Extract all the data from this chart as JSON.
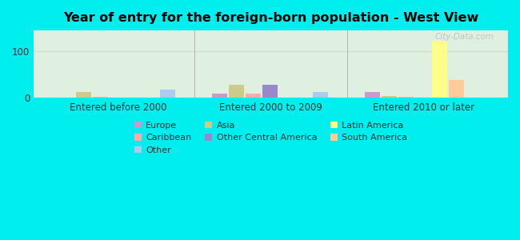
{
  "title": "Year of entry for the foreign-born population - West View",
  "background_color": "#00EEEE",
  "categories": [
    "Entered before 2000",
    "Entered 2000 to 2009",
    "Entered 2010 or later"
  ],
  "series": [
    {
      "name": "Europe",
      "color": "#cc99cc",
      "values": [
        0,
        8,
        12
      ]
    },
    {
      "name": "Asia",
      "color": "#cccc88",
      "values": [
        13,
        28,
        4
      ]
    },
    {
      "name": "Caribbean",
      "color": "#ffaaaa",
      "values": [
        1,
        8,
        2
      ]
    },
    {
      "name": "Other Central America",
      "color": "#9988cc",
      "values": [
        0,
        27,
        0
      ]
    },
    {
      "name": "Latin America",
      "color": "#ffff88",
      "values": [
        0,
        0,
        122
      ]
    },
    {
      "name": "South America",
      "color": "#ffcc99",
      "values": [
        0,
        0,
        38
      ]
    },
    {
      "name": "Other",
      "color": "#aaccee",
      "values": [
        18,
        13,
        0
      ]
    }
  ],
  "ylim": [
    0,
    145
  ],
  "yticks": [
    0,
    100
  ],
  "figsize": [
    6.5,
    3.0
  ],
  "dpi": 100,
  "watermark": "City-Data.com",
  "legend_order": [
    0,
    2,
    6,
    1,
    3,
    4,
    5
  ],
  "legend_ncol": 3
}
